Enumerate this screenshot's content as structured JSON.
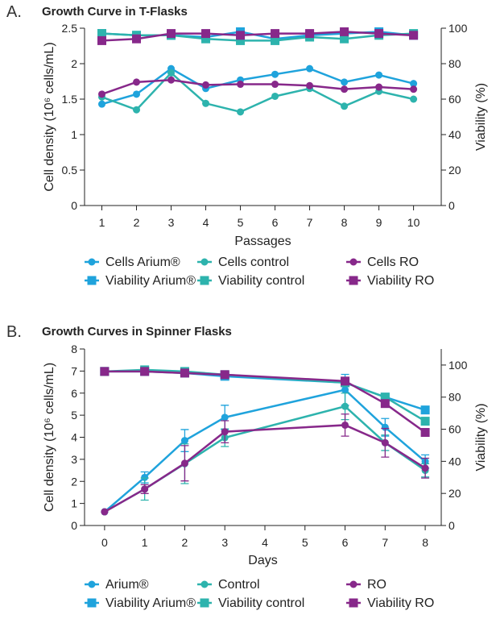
{
  "colors": {
    "arium": "#1fa3dc",
    "control": "#2db3ad",
    "ro": "#87288a"
  },
  "chart_data": [
    {
      "panel": "A.",
      "title": "Growth Curve in T-Flasks",
      "type": "line",
      "xlabel": "Passages",
      "ylabel": "Cell density (10⁶ cells/mL)",
      "y2label": "Viability (%)",
      "x": [
        1,
        2,
        3,
        4,
        5,
        6,
        7,
        8,
        9,
        10
      ],
      "xlim": [
        0.5,
        10.8
      ],
      "ylim": [
        0,
        2.5
      ],
      "y2lim": [
        0,
        100
      ],
      "yticks": [
        "0",
        "0.5",
        "1",
        "1.5",
        "2",
        "2.5"
      ],
      "y2ticks": [
        "0",
        "20",
        "40",
        "60",
        "80",
        "100"
      ],
      "xticks": [
        "1",
        "2",
        "3",
        "4",
        "5",
        "6",
        "7",
        "8",
        "9",
        "10"
      ],
      "series": [
        {
          "name": "Cells Arium®",
          "color": "arium",
          "marker": "circle",
          "axis": "left",
          "values": [
            1.43,
            1.57,
            1.93,
            1.65,
            1.77,
            1.85,
            1.93,
            1.74,
            1.84,
            1.72
          ]
        },
        {
          "name": "Cells control",
          "color": "control",
          "marker": "circle",
          "axis": "left",
          "values": [
            1.53,
            1.35,
            1.87,
            1.44,
            1.32,
            1.54,
            1.65,
            1.4,
            1.61,
            1.5
          ]
        },
        {
          "name": "Cells RO",
          "color": "ro",
          "marker": "circle",
          "axis": "left",
          "values": [
            1.57,
            1.74,
            1.77,
            1.7,
            1.71,
            1.71,
            1.69,
            1.64,
            1.67,
            1.64
          ]
        },
        {
          "name": "Viability Arium®",
          "color": "arium",
          "marker": "square",
          "axis": "right",
          "values": [
            97,
            96,
            96,
            95,
            98,
            94,
            96,
            97,
            98,
            96
          ]
        },
        {
          "name": "Viability control",
          "color": "control",
          "marker": "square",
          "axis": "right",
          "values": [
            97,
            96,
            96,
            94,
            93,
            93,
            95,
            94,
            96,
            97
          ]
        },
        {
          "name": "Viability RO",
          "color": "ro",
          "marker": "square",
          "axis": "right",
          "values": [
            93,
            94,
            97,
            97,
            96,
            97,
            97,
            98,
            97,
            96
          ]
        }
      ]
    },
    {
      "panel": "B.",
      "title": "Growth Curves in Spinner Flasks",
      "type": "line",
      "xlabel": "Days",
      "ylabel": "Cell density (10⁶ cells/mL)",
      "y2label": "Viability (%)",
      "x": [
        0,
        1,
        2,
        3,
        6,
        7,
        8
      ],
      "xlim": [
        -0.5,
        8.4
      ],
      "ylim": [
        0,
        8
      ],
      "y2lim": [
        0,
        110
      ],
      "yticks": [
        "0",
        "1",
        "2",
        "3",
        "4",
        "5",
        "6",
        "7",
        "8"
      ],
      "y2ticks": [
        "0",
        "20",
        "40",
        "60",
        "80",
        "100"
      ],
      "xticks": [
        "0",
        "1",
        "2",
        "3",
        "4",
        "5",
        "6",
        "7",
        "8"
      ],
      "series": [
        {
          "name": "Arium®",
          "color": "arium",
          "marker": "circle",
          "axis": "left",
          "values": [
            0.62,
            2.18,
            3.85,
            4.9,
            6.15,
            4.45,
            2.9
          ],
          "error": [
            0,
            0.25,
            0.5,
            0.55,
            0.7,
            0.4,
            0.3
          ]
        },
        {
          "name": "Control",
          "color": "control",
          "marker": "circle",
          "axis": "left",
          "values": [
            0.62,
            1.65,
            2.8,
            3.98,
            5.4,
            3.75,
            2.5
          ],
          "error": [
            0,
            0.5,
            0.9,
            0.4,
            0.6,
            0.35,
            0.3
          ]
        },
        {
          "name": "RO",
          "color": "ro",
          "marker": "circle",
          "axis": "left",
          "values": [
            0.62,
            1.65,
            2.82,
            4.25,
            4.55,
            3.75,
            2.6
          ],
          "error": [
            0,
            0.2,
            0.8,
            0.5,
            0.5,
            0.65,
            0.45
          ]
        },
        {
          "name": "Viability Arium®",
          "color": "arium",
          "marker": "square",
          "axis": "right",
          "values": [
            96,
            96,
            95,
            93,
            89,
            80,
            72
          ]
        },
        {
          "name": "Viability control",
          "color": "control",
          "marker": "square",
          "axis": "right",
          "values": [
            96,
            97,
            96,
            94,
            89,
            80,
            65
          ]
        },
        {
          "name": "Viability RO",
          "color": "ro",
          "marker": "square",
          "axis": "right",
          "values": [
            96,
            96,
            95,
            94,
            90,
            76,
            58
          ]
        }
      ]
    }
  ]
}
